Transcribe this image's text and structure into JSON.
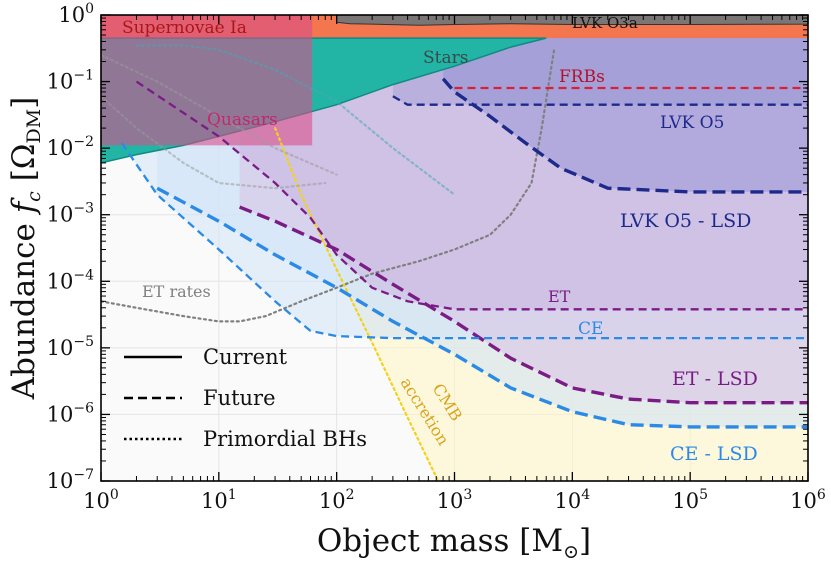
{
  "chart_data": {
    "type": "line",
    "title": "",
    "xlabel": "Object mass [M⊙]",
    "ylabel": "Abundance  fc  [ΩDM]",
    "x_scale": "log",
    "y_scale": "log",
    "xlim": [
      1,
      1000000
    ],
    "ylim": [
      1e-07,
      1
    ],
    "grid": true,
    "x_ticks": [
      1,
      10,
      100,
      1000,
      10000,
      100000,
      1000000
    ],
    "y_ticks": [
      1e-07,
      1e-06,
      1e-05,
      0.0001,
      0.001,
      0.01,
      0.1,
      1
    ],
    "x_tick_labels": [
      {
        "base": "10",
        "exp": "0"
      },
      {
        "base": "10",
        "exp": "1"
      },
      {
        "base": "10",
        "exp": "2"
      },
      {
        "base": "10",
        "exp": "3"
      },
      {
        "base": "10",
        "exp": "4"
      },
      {
        "base": "10",
        "exp": "5"
      },
      {
        "base": "10",
        "exp": "6"
      }
    ],
    "y_tick_labels": [
      {
        "base": "10",
        "exp": "−7"
      },
      {
        "base": "10",
        "exp": "−6"
      },
      {
        "base": "10",
        "exp": "−5"
      },
      {
        "base": "10",
        "exp": "−4"
      },
      {
        "base": "10",
        "exp": "−3"
      },
      {
        "base": "10",
        "exp": "−2"
      },
      {
        "base": "10",
        "exp": "−1"
      },
      {
        "base": "10",
        "exp": "0"
      }
    ],
    "legend": {
      "placement": "bottom-left",
      "entries": [
        {
          "label": "Current",
          "style": "solid"
        },
        {
          "label": "Future",
          "style": "dashed"
        },
        {
          "label": "Primordial BHs",
          "style": "dotted"
        }
      ]
    },
    "current_constraints": [
      {
        "name": "Supernovae Ia",
        "color": "#f4764f",
        "x": [
          1,
          1000000
        ],
        "y_lower": [
          0.45,
          0.45
        ],
        "y_upper": [
          1,
          1
        ]
      },
      {
        "name": "LVK O3a",
        "color": "#7a7676",
        "x": [
          100,
          130,
          200,
          500,
          1000,
          3000,
          10000,
          100000,
          1000000
        ],
        "y_lower": [
          0.78,
          0.74,
          0.73,
          0.7,
          0.72,
          0.74,
          0.72,
          0.72,
          0.73
        ],
        "y_upper": [
          1,
          1,
          1,
          1,
          1,
          1,
          1,
          1,
          1
        ]
      },
      {
        "name": "Stars",
        "color": "#22b5a6",
        "x": [
          1,
          2,
          5,
          10,
          30,
          100,
          300,
          1000,
          3000,
          6000
        ],
        "y_lower": [
          0.006,
          0.008,
          0.011,
          0.015,
          0.025,
          0.045,
          0.09,
          0.17,
          0.33,
          0.45
        ],
        "y_upper": [
          0.45,
          0.45,
          0.45,
          0.45,
          0.45,
          0.45,
          0.45,
          0.45,
          0.45,
          0.45
        ]
      },
      {
        "name": "Quasars",
        "color": "#d94f8a",
        "x": [
          1,
          62
        ],
        "y_lower": [
          0.011,
          0.011
        ],
        "y_upper": [
          1,
          1
        ]
      }
    ],
    "future_projections": [
      {
        "name": "FRBs",
        "color": "#d8203a",
        "x": [
          1000,
          1000000
        ],
        "y": [
          0.08,
          0.08
        ]
      },
      {
        "name": "LVK O5",
        "color": "#1d2a8c",
        "x": [
          300,
          400,
          1000,
          100000,
          1000000
        ],
        "y": [
          0.06,
          0.045,
          0.045,
          0.045,
          0.045
        ]
      },
      {
        "name": "LVK O5 - LSD",
        "color": "#1d2a8c",
        "x": [
          800,
          1000,
          2000,
          4000,
          8000,
          20000,
          100000,
          1000000
        ],
        "y": [
          0.11,
          0.07,
          0.03,
          0.012,
          0.005,
          0.0025,
          0.0022,
          0.0022
        ]
      },
      {
        "name": "ET",
        "color": "#7b1c86",
        "x": [
          2,
          10,
          30,
          60,
          100,
          200,
          400,
          1000,
          3000,
          1000000
        ],
        "y": [
          0.1,
          0.015,
          0.003,
          0.0009,
          0.00025,
          8e-05,
          5e-05,
          3.8e-05,
          3.8e-05,
          3.8e-05
        ]
      },
      {
        "name": "ET - LSD",
        "color": "#7b1c86",
        "x": [
          15,
          30,
          100,
          300,
          1000,
          3000,
          10000,
          30000,
          100000,
          1000000
        ],
        "y": [
          0.0013,
          0.0008,
          0.0003,
          9e-05,
          2.5e-05,
          7e-06,
          2.5e-06,
          1.7e-06,
          1.5e-06,
          1.5e-06
        ]
      },
      {
        "name": "CE",
        "color": "#2b8ae6",
        "x": [
          1.5,
          3,
          10,
          30,
          60,
          100,
          300,
          1000,
          1000000
        ],
        "y": [
          0.012,
          0.002,
          0.0003,
          5e-05,
          1.8e-05,
          1.5e-05,
          1.4e-05,
          1.4e-05,
          1.4e-05
        ]
      },
      {
        "name": "CE - LSD",
        "color": "#2b8ae6",
        "x": [
          3,
          10,
          30,
          100,
          300,
          1000,
          3000,
          10000,
          30000,
          100000,
          1000000
        ],
        "y": [
          0.0025,
          0.0008,
          0.00025,
          8e-05,
          2.5e-05,
          8e-06,
          2.5e-06,
          1.1e-06,
          7e-07,
          6.5e-07,
          6.5e-07
        ]
      }
    ],
    "primordial_bh": [
      {
        "name": "ET rates",
        "color": "#808080",
        "x": [
          1,
          2,
          5,
          10,
          15,
          25,
          50,
          100,
          200,
          500,
          1000,
          2000,
          3000,
          4500,
          5500,
          7000
        ],
        "y": [
          5e-05,
          4e-05,
          3e-05,
          2.5e-05,
          2.5e-05,
          3e-05,
          5e-05,
          8e-05,
          0.00013,
          0.0002,
          0.0003,
          0.0005,
          0.001,
          0.003,
          0.02,
          0.3
        ]
      },
      {
        "name": "CMB accretion",
        "color": "#f2d21b",
        "x": [
          30,
          50,
          100,
          200,
          400,
          800
        ],
        "y": [
          0.02,
          0.002,
          0.00015,
          1.2e-05,
          9e-07,
          7e-08
        ]
      },
      {
        "name": "LVK O3a (PBH)",
        "color": "#9a9a9a",
        "x": [
          1,
          2,
          5,
          10,
          30,
          80
        ],
        "y": [
          0.06,
          0.02,
          0.006,
          0.003,
          0.0025,
          0.003
        ]
      },
      {
        "name": "Stars (PBH)",
        "color": "#48a8b6",
        "x": [
          2,
          5,
          10,
          30,
          100,
          300,
          1000
        ],
        "y": [
          0.35,
          0.35,
          0.3,
          0.15,
          0.05,
          0.01,
          0.002
        ]
      },
      {
        "name": "Quasars (PBH)",
        "color": "#9a9a9a",
        "x": [
          1,
          3,
          10,
          30,
          100
        ],
        "y": [
          0.25,
          0.1,
          0.03,
          0.01,
          0.004
        ]
      }
    ],
    "annotations": [
      {
        "text": "Supernovae Ia",
        "color": "#a81818"
      },
      {
        "text": "LVK O3a",
        "color": "#111111"
      },
      {
        "text": "Stars",
        "color": "#3a4a4a"
      },
      {
        "text": "FRBs",
        "color": "#b0122a"
      },
      {
        "text": "Quasars",
        "color": "#c4266e"
      },
      {
        "text": "LVK O5",
        "color": "#1d2a8c"
      },
      {
        "text": "LVK O5 - LSD",
        "color": "#1d2a8c"
      },
      {
        "text": "ET rates",
        "color": "#808080"
      },
      {
        "text": "ET",
        "color": "#7b1c86"
      },
      {
        "text": "CE",
        "color": "#2b8ae6"
      },
      {
        "text": "ET - LSD",
        "color": "#7b1c86"
      },
      {
        "text": "CE - LSD",
        "color": "#2b8ae6"
      },
      {
        "text": "CMB",
        "color": "#d9a419"
      },
      {
        "text": "accretion",
        "color": "#d9a419"
      }
    ]
  }
}
